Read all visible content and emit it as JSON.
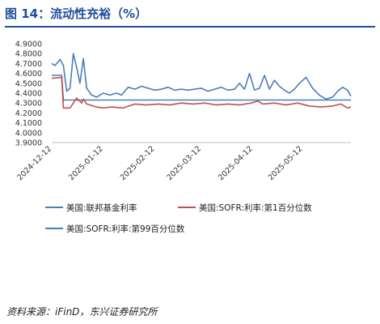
{
  "page": {
    "title": "图 14：流动性充裕（%）",
    "source": "资料来源：iFinD，东兴证券研究所"
  },
  "chart_data": {
    "type": "line",
    "title": "",
    "xlabel": "",
    "ylabel": "",
    "ylim": [
      3.9,
      4.9
    ],
    "yticks": [
      "4.9000",
      "4.8000",
      "4.7000",
      "4.6000",
      "4.5000",
      "4.4000",
      "4.3000",
      "4.2000",
      "4.1000",
      "4.0000",
      "3.9000"
    ],
    "xlim": [
      "2024-12-12",
      "2025-06-10"
    ],
    "xticks": [
      "2024-12-12",
      "2025-01-12",
      "2025-02-12",
      "2025-03-12",
      "2025-04-12",
      "2025-05-12"
    ],
    "grid": false,
    "legend_position": "bottom",
    "series": [
      {
        "name": "美国:联邦基金利率",
        "color": "#4a7ebb",
        "x": [
          "2024-12-12",
          "2024-12-18",
          "2024-12-19",
          "2025-06-10"
        ],
        "y": [
          4.58,
          4.58,
          4.33,
          4.33
        ]
      },
      {
        "name": "美国:SOFR:利率:第1百分位数",
        "color": "#c0504d",
        "x": [
          "2024-12-12",
          "2024-12-18",
          "2024-12-19",
          "2024-12-23",
          "2024-12-27",
          "2024-12-30",
          "2024-12-31",
          "2025-01-02",
          "2025-01-06",
          "2025-01-08",
          "2025-01-12",
          "2025-01-17",
          "2025-01-24",
          "2025-01-31",
          "2025-02-07",
          "2025-02-14",
          "2025-02-21",
          "2025-02-28",
          "2025-03-07",
          "2025-03-14",
          "2025-03-21",
          "2025-03-28",
          "2025-04-04",
          "2025-04-11",
          "2025-04-15",
          "2025-04-18",
          "2025-04-25",
          "2025-05-02",
          "2025-05-09",
          "2025-05-16",
          "2025-05-23",
          "2025-05-30",
          "2025-06-04",
          "2025-06-08",
          "2025-06-10"
        ],
        "y": [
          4.55,
          4.56,
          4.25,
          4.25,
          4.35,
          4.3,
          4.34,
          4.29,
          4.27,
          4.26,
          4.25,
          4.26,
          4.25,
          4.29,
          4.28,
          4.29,
          4.28,
          4.3,
          4.29,
          4.3,
          4.28,
          4.29,
          4.28,
          4.3,
          4.32,
          4.29,
          4.3,
          4.28,
          4.3,
          4.27,
          4.26,
          4.27,
          4.29,
          4.25,
          4.26
        ]
      },
      {
        "name": "美国:SOFR:利率:第99百分位数",
        "color": "#4a7ebb",
        "x": [
          "2024-12-12",
          "2024-12-14",
          "2024-12-17",
          "2024-12-19",
          "2024-12-21",
          "2024-12-23",
          "2024-12-25",
          "2024-12-27",
          "2024-12-29",
          "2024-12-31",
          "2025-01-02",
          "2025-01-05",
          "2025-01-08",
          "2025-01-12",
          "2025-01-16",
          "2025-01-20",
          "2025-01-23",
          "2025-01-27",
          "2025-01-31",
          "2025-02-04",
          "2025-02-08",
          "2025-02-12",
          "2025-02-16",
          "2025-02-20",
          "2025-02-24",
          "2025-02-28",
          "2025-03-04",
          "2025-03-08",
          "2025-03-12",
          "2025-03-16",
          "2025-03-20",
          "2025-03-24",
          "2025-03-28",
          "2025-04-01",
          "2025-04-04",
          "2025-04-07",
          "2025-04-10",
          "2025-04-13",
          "2025-04-16",
          "2025-04-19",
          "2025-04-22",
          "2025-04-25",
          "2025-04-28",
          "2025-05-01",
          "2025-05-04",
          "2025-05-07",
          "2025-05-10",
          "2025-05-14",
          "2025-05-18",
          "2025-05-22",
          "2025-05-26",
          "2025-05-30",
          "2025-06-02",
          "2025-06-05",
          "2025-06-08",
          "2025-06-10"
        ],
        "y": [
          4.7,
          4.68,
          4.74,
          4.68,
          4.42,
          4.45,
          4.8,
          4.66,
          4.5,
          4.75,
          4.45,
          4.38,
          4.36,
          4.4,
          4.38,
          4.4,
          4.38,
          4.46,
          4.44,
          4.47,
          4.45,
          4.43,
          4.44,
          4.46,
          4.43,
          4.44,
          4.43,
          4.44,
          4.45,
          4.42,
          4.44,
          4.46,
          4.43,
          4.44,
          4.5,
          4.44,
          4.6,
          4.43,
          4.45,
          4.58,
          4.44,
          4.53,
          4.47,
          4.43,
          4.4,
          4.44,
          4.5,
          4.56,
          4.45,
          4.38,
          4.34,
          4.36,
          4.42,
          4.46,
          4.43,
          4.37
        ]
      }
    ]
  }
}
